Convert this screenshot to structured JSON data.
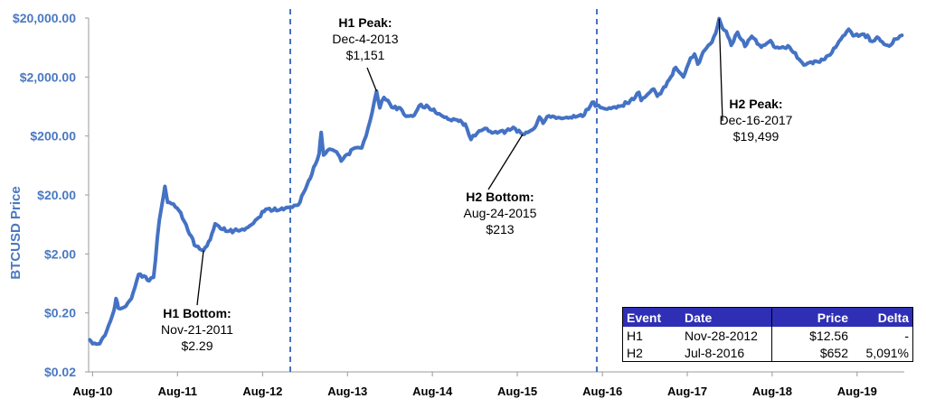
{
  "chart_data": {
    "type": "line",
    "title": "",
    "ylabel": "BTCUSD Price",
    "xlabel": "",
    "yscale": "log",
    "ylim": [
      0.02,
      20000
    ],
    "xlim": [
      "2010-07-15",
      "2020-02-20"
    ],
    "yticks": [
      "$0.02",
      "$0.20",
      "$2.00",
      "$20.00",
      "$200.00",
      "$2,000.00",
      "$20,000.00"
    ],
    "xticks": [
      "Aug-10",
      "Aug-11",
      "Aug-12",
      "Aug-13",
      "Aug-14",
      "Aug-15",
      "Aug-16",
      "Aug-17",
      "Aug-18",
      "Aug-19"
    ],
    "series_color": "#4472c4",
    "series": [
      {
        "name": "",
        "points": [
          [
            "2010-07-20",
            0.07
          ],
          [
            "2010-08-01",
            0.06
          ],
          [
            "2010-09-01",
            0.06
          ],
          [
            "2010-10-01",
            0.1
          ],
          [
            "2010-11-01",
            0.22
          ],
          [
            "2010-11-10",
            0.35
          ],
          [
            "2010-11-20",
            0.24
          ],
          [
            "2010-12-15",
            0.25
          ],
          [
            "2011-01-15",
            0.35
          ],
          [
            "2011-02-15",
            0.9
          ],
          [
            "2011-03-10",
            0.85
          ],
          [
            "2011-04-01",
            0.7
          ],
          [
            "2011-04-20",
            0.8
          ],
          [
            "2011-05-15",
            7.5
          ],
          [
            "2011-06-08",
            28
          ],
          [
            "2011-06-20",
            15
          ],
          [
            "2011-07-15",
            14
          ],
          [
            "2011-08-15",
            10
          ],
          [
            "2011-09-15",
            5
          ],
          [
            "2011-10-20",
            2.7
          ],
          [
            "2011-11-21",
            2.29
          ],
          [
            "2011-12-20",
            3.5
          ],
          [
            "2012-01-10",
            6.5
          ],
          [
            "2012-02-10",
            5.2
          ],
          [
            "2012-03-10",
            4.9
          ],
          [
            "2012-04-15",
            5.0
          ],
          [
            "2012-05-15",
            5.1
          ],
          [
            "2012-06-15",
            6.3
          ],
          [
            "2012-07-15",
            8.3
          ],
          [
            "2012-08-15",
            11.5
          ],
          [
            "2012-09-15",
            11.0
          ],
          [
            "2012-10-15",
            11.3
          ],
          [
            "2012-11-28",
            12.56
          ],
          [
            "2013-01-01",
            13.5
          ],
          [
            "2013-02-01",
            25
          ],
          [
            "2013-03-01",
            45
          ],
          [
            "2013-04-01",
            100
          ],
          [
            "2013-04-10",
            230
          ],
          [
            "2013-04-20",
            95
          ],
          [
            "2013-05-15",
            120
          ],
          [
            "2013-06-15",
            108
          ],
          [
            "2013-07-05",
            75
          ],
          [
            "2013-08-01",
            98
          ],
          [
            "2013-09-01",
            125
          ],
          [
            "2013-10-01",
            125
          ],
          [
            "2013-10-20",
            200
          ],
          [
            "2013-11-15",
            500
          ],
          [
            "2013-12-04",
            1151
          ],
          [
            "2013-12-18",
            600
          ],
          [
            "2014-01-05",
            900
          ],
          [
            "2014-02-15",
            600
          ],
          [
            "2014-03-15",
            600
          ],
          [
            "2014-04-10",
            430
          ],
          [
            "2014-05-15",
            450
          ],
          [
            "2014-06-05",
            650
          ],
          [
            "2014-07-15",
            620
          ],
          [
            "2014-08-15",
            500
          ],
          [
            "2014-09-15",
            430
          ],
          [
            "2014-10-15",
            380
          ],
          [
            "2014-11-15",
            375
          ],
          [
            "2014-12-20",
            320
          ],
          [
            "2015-01-14",
            175
          ],
          [
            "2015-02-10",
            225
          ],
          [
            "2015-03-15",
            270
          ],
          [
            "2015-04-15",
            225
          ],
          [
            "2015-05-15",
            235
          ],
          [
            "2015-06-15",
            245
          ],
          [
            "2015-07-15",
            280
          ],
          [
            "2015-08-24",
            213
          ],
          [
            "2015-09-15",
            230
          ],
          [
            "2015-10-15",
            275
          ],
          [
            "2015-11-04",
            420
          ],
          [
            "2015-11-20",
            330
          ],
          [
            "2015-12-15",
            440
          ],
          [
            "2016-01-15",
            400
          ],
          [
            "2016-02-15",
            400
          ],
          [
            "2016-03-15",
            415
          ],
          [
            "2016-04-15",
            430
          ],
          [
            "2016-05-15",
            455
          ],
          [
            "2016-06-18",
            750
          ],
          [
            "2016-07-08",
            652
          ],
          [
            "2016-08-15",
            575
          ],
          [
            "2016-09-15",
            610
          ],
          [
            "2016-10-15",
            640
          ],
          [
            "2016-11-15",
            720
          ],
          [
            "2016-12-20",
            900
          ],
          [
            "2017-01-05",
            1100
          ],
          [
            "2017-01-15",
            800
          ],
          [
            "2017-02-15",
            1050
          ],
          [
            "2017-03-10",
            1250
          ],
          [
            "2017-03-25",
            950
          ],
          [
            "2017-04-15",
            1200
          ],
          [
            "2017-05-15",
            1800
          ],
          [
            "2017-06-12",
            2900
          ],
          [
            "2017-07-15",
            2000
          ],
          [
            "2017-08-15",
            4200
          ],
          [
            "2017-09-01",
            4900
          ],
          [
            "2017-09-15",
            3300
          ],
          [
            "2017-10-15",
            5700
          ],
          [
            "2017-11-15",
            7800
          ],
          [
            "2017-12-01",
            11000
          ],
          [
            "2017-12-16",
            19499
          ],
          [
            "2017-12-30",
            13500
          ],
          [
            "2018-01-15",
            12000
          ],
          [
            "2018-02-06",
            6900
          ],
          [
            "2018-03-05",
            11500
          ],
          [
            "2018-04-06",
            6600
          ],
          [
            "2018-05-05",
            9800
          ],
          [
            "2018-06-15",
            6400
          ],
          [
            "2018-07-25",
            8300
          ],
          [
            "2018-08-15",
            6300
          ],
          [
            "2018-09-15",
            6500
          ],
          [
            "2018-10-15",
            6400
          ],
          [
            "2018-11-25",
            4000
          ],
          [
            "2018-12-15",
            3200
          ],
          [
            "2019-01-15",
            3600
          ],
          [
            "2019-02-15",
            3600
          ],
          [
            "2019-03-15",
            4000
          ],
          [
            "2019-04-15",
            5200
          ],
          [
            "2019-05-15",
            8000
          ],
          [
            "2019-06-26",
            12900
          ],
          [
            "2019-07-15",
            10000
          ],
          [
            "2019-08-15",
            10300
          ],
          [
            "2019-09-15",
            10200
          ],
          [
            "2019-09-26",
            8200
          ],
          [
            "2019-10-15",
            8300
          ],
          [
            "2019-10-26",
            9500
          ],
          [
            "2019-11-25",
            7200
          ],
          [
            "2019-12-17",
            6700
          ],
          [
            "2020-01-15",
            8800
          ],
          [
            "2020-02-10",
            10200
          ]
        ]
      }
    ],
    "halving_lines": [
      "2012-11-28",
      "2016-07-08"
    ],
    "annotations": [
      {
        "title": "H1 Bottom:",
        "date_label": "Nov-21-2011",
        "value_label": "$2.29",
        "date": "2011-11-21",
        "value": 2.29
      },
      {
        "title": "H1 Peak:",
        "date_label": "Dec-4-2013",
        "value_label": "$1,151",
        "date": "2013-12-04",
        "value": 1151
      },
      {
        "title": "H2 Bottom:",
        "date_label": "Aug-24-2015",
        "value_label": "$213",
        "date": "2015-08-24",
        "value": 213
      },
      {
        "title": "H2 Peak:",
        "date_label": "Dec-16-2017",
        "value_label": "$19,499",
        "date": "2017-12-16",
        "value": 19499
      }
    ]
  },
  "table": {
    "headers": [
      "Event",
      "Date",
      "Price",
      "Delta"
    ],
    "rows": [
      [
        "H1",
        "Nov-28-2012",
        "$12.56",
        "-"
      ],
      [
        "H2",
        "Jul-8-2016",
        "$652",
        "5,091%"
      ]
    ]
  }
}
